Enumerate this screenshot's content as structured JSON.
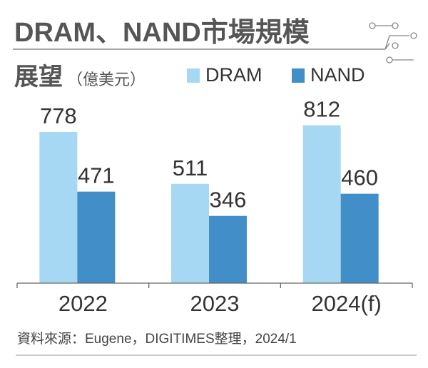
{
  "chart_data": {
    "type": "bar",
    "title": "DRAM、NAND市場規模",
    "subtitle": "展望",
    "unit": "（億美元）",
    "categories": [
      "2022",
      "2023",
      "2024(f)"
    ],
    "series": [
      {
        "name": "DRAM",
        "values": [
          778,
          511,
          812
        ],
        "color": "#a6d8f4"
      },
      {
        "name": "NAND",
        "values": [
          471,
          346,
          460
        ],
        "color": "#418ec8"
      }
    ],
    "ylim": [
      0,
      900
    ],
    "grid": false,
    "legend": "top-right",
    "data_labels": true
  },
  "source": "資料來源：Eugene，DIGITIMES整理，2024/1"
}
